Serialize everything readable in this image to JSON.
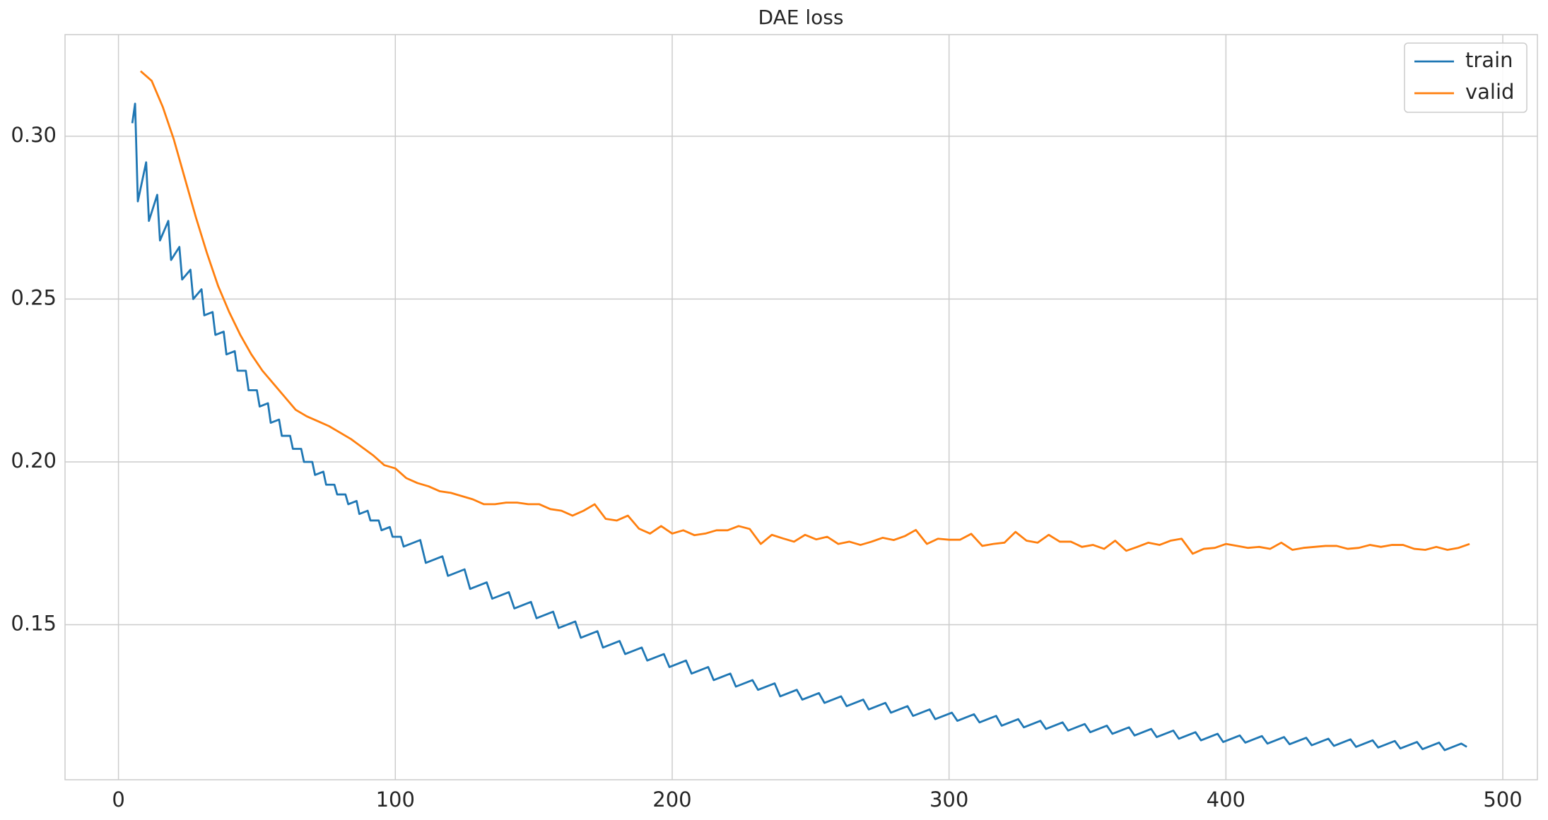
{
  "chart_data": {
    "type": "line",
    "title": "DAE loss",
    "xlim": [
      -19.3,
      512.5
    ],
    "xticks": [
      0,
      100,
      200,
      300,
      400,
      500
    ],
    "ylim": [
      0.1024,
      0.3312
    ],
    "yticks": [
      0.15,
      {
        "value": 0.2,
        "label": "0.20"
      },
      0.25,
      {
        "value": 0.3,
        "label": "0.30"
      }
    ],
    "grid": true,
    "legend": "upper right",
    "series": [
      {
        "name": "train",
        "color": "#1f77b4",
        "x": [
          5,
          6,
          7,
          10,
          11,
          14,
          15,
          18,
          19,
          22,
          23,
          26,
          27,
          30,
          31,
          34,
          35,
          38,
          39,
          42,
          43,
          46,
          47,
          50,
          51,
          54,
          55,
          58,
          59,
          62,
          63,
          66,
          67,
          70,
          71,
          74,
          75,
          78,
          79,
          82,
          83,
          86,
          87,
          90,
          91,
          94,
          95,
          98,
          99,
          102,
          103,
          109,
          111,
          117,
          119,
          125,
          127,
          133,
          135,
          141,
          143,
          149,
          151,
          157,
          159,
          165,
          167,
          173,
          175,
          181,
          183,
          189,
          191,
          197,
          199,
          205,
          207,
          213,
          215,
          221,
          223,
          229,
          231,
          237,
          239,
          245,
          247,
          253,
          255,
          261,
          263,
          269,
          271,
          277,
          279,
          285,
          287,
          293,
          295,
          301,
          303,
          309,
          311,
          317,
          319,
          325,
          327,
          333,
          335,
          341,
          343,
          349,
          351,
          357,
          359,
          365,
          367,
          373,
          375,
          381,
          383,
          389,
          391,
          397,
          399,
          405,
          407,
          413,
          415,
          421,
          423,
          429,
          431,
          437,
          439,
          445,
          447,
          453,
          455,
          461,
          463,
          469,
          471,
          477,
          479,
          485,
          487
        ],
        "values": [
          0.304,
          0.31,
          0.28,
          0.292,
          0.274,
          0.282,
          0.268,
          0.274,
          0.262,
          0.266,
          0.256,
          0.259,
          0.25,
          0.253,
          0.245,
          0.246,
          0.239,
          0.24,
          0.233,
          0.234,
          0.228,
          0.228,
          0.222,
          0.222,
          0.217,
          0.218,
          0.212,
          0.213,
          0.208,
          0.208,
          0.204,
          0.204,
          0.2,
          0.2,
          0.196,
          0.197,
          0.193,
          0.193,
          0.19,
          0.19,
          0.187,
          0.188,
          0.184,
          0.185,
          0.182,
          0.182,
          0.179,
          0.18,
          0.177,
          0.177,
          0.174,
          0.176,
          0.169,
          0.171,
          0.165,
          0.167,
          0.161,
          0.163,
          0.158,
          0.16,
          0.155,
          0.157,
          0.152,
          0.154,
          0.149,
          0.151,
          0.146,
          0.148,
          0.143,
          0.145,
          0.141,
          0.143,
          0.139,
          0.141,
          0.137,
          0.139,
          0.135,
          0.137,
          0.133,
          0.135,
          0.131,
          0.133,
          0.13,
          0.132,
          0.128,
          0.13,
          0.127,
          0.129,
          0.126,
          0.128,
          0.125,
          0.127,
          0.124,
          0.126,
          0.123,
          0.125,
          0.122,
          0.124,
          0.121,
          0.123,
          0.1205,
          0.1225,
          0.12,
          0.122,
          0.119,
          0.121,
          0.1185,
          0.1205,
          0.118,
          0.12,
          0.1175,
          0.1195,
          0.117,
          0.119,
          0.1165,
          0.1185,
          0.116,
          0.118,
          0.1155,
          0.1175,
          0.115,
          0.117,
          0.1145,
          0.1165,
          0.114,
          0.116,
          0.1138,
          0.1158,
          0.1135,
          0.1155,
          0.1133,
          0.1153,
          0.113,
          0.115,
          0.1128,
          0.1148,
          0.1125,
          0.1145,
          0.1123,
          0.1143,
          0.112,
          0.114,
          0.1118,
          0.1138,
          0.1115,
          0.1135,
          0.1125
        ]
      },
      {
        "name": "valid",
        "color": "#ff7f0e",
        "x": [
          8,
          12,
          16,
          20,
          24,
          28,
          32,
          36,
          40,
          44,
          48,
          52,
          56,
          60,
          64,
          68,
          72,
          76,
          80,
          84,
          88,
          92,
          96,
          100,
          104,
          108,
          112,
          116,
          120,
          124,
          128,
          132,
          136,
          140,
          144,
          148,
          152,
          156,
          160,
          164,
          168,
          172,
          176,
          180,
          184,
          188,
          192,
          196,
          200,
          204,
          208,
          212,
          216,
          220,
          224,
          228,
          232,
          236,
          240,
          244,
          248,
          252,
          256,
          260,
          264,
          268,
          272,
          276,
          280,
          284,
          288,
          292,
          296,
          300,
          304,
          308,
          312,
          316,
          320,
          324,
          328,
          332,
          336,
          340,
          344,
          348,
          352,
          356,
          360,
          364,
          368,
          372,
          376,
          380,
          384,
          388,
          392,
          396,
          400,
          404,
          408,
          412,
          416,
          420,
          424,
          428,
          432,
          436,
          440,
          444,
          448,
          452,
          456,
          460,
          464,
          468,
          472,
          476,
          480,
          484,
          488
        ],
        "values": [
          0.32,
          0.317,
          0.309,
          0.299,
          0.287,
          0.275,
          0.264,
          0.254,
          0.246,
          0.239,
          0.233,
          0.228,
          0.224,
          0.22,
          0.216,
          0.214,
          0.2125,
          0.211,
          0.209,
          0.207,
          0.2045,
          0.202,
          0.199,
          0.198,
          0.195,
          0.1935,
          0.1925,
          0.191,
          0.1905,
          0.1895,
          0.1885,
          0.187,
          0.187,
          0.1875,
          0.1875,
          0.187,
          0.187,
          0.1855,
          0.185,
          0.1835,
          0.185,
          0.187,
          0.1825,
          0.182,
          0.1835,
          0.1795,
          0.178,
          0.1803,
          0.178,
          0.179,
          0.1775,
          0.178,
          0.179,
          0.179,
          0.1803,
          0.1794,
          0.1748,
          0.1776,
          0.1765,
          0.1755,
          0.1776,
          0.1762,
          0.177,
          0.1748,
          0.1755,
          0.1745,
          0.1755,
          0.1767,
          0.176,
          0.1772,
          0.1791,
          0.1748,
          0.1764,
          0.1761,
          0.1761,
          0.1779,
          0.1742,
          0.1748,
          0.1752,
          0.1785,
          0.1758,
          0.1752,
          0.1776,
          0.1755,
          0.1755,
          0.1739,
          0.1745,
          0.1733,
          0.1758,
          0.1727,
          0.1739,
          0.1752,
          0.1745,
          0.1758,
          0.1764,
          0.1718,
          0.1733,
          0.1736,
          0.1748,
          0.1742,
          0.1736,
          0.1739,
          0.1733,
          0.1752,
          0.173,
          0.1736,
          0.1739,
          0.1742,
          0.1742,
          0.1733,
          0.1736,
          0.1745,
          0.1739,
          0.1745,
          0.1745,
          0.1733,
          0.173,
          0.1739,
          0.173,
          0.1736,
          0.1748
        ]
      }
    ]
  }
}
